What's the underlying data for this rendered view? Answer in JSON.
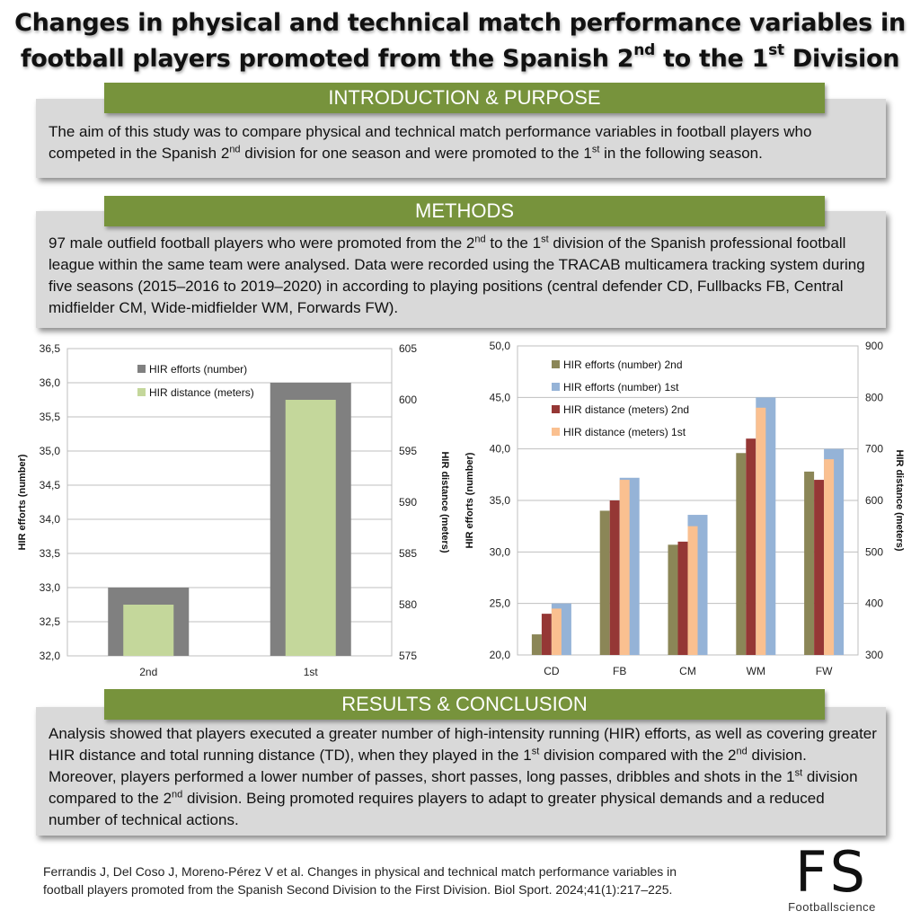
{
  "title": {
    "line1": "Changes in physical and technical match performance variables in",
    "line2_part1": "football players promoted from the Spanish 2",
    "line2_sup1": "nd",
    "line2_part2": " to the 1",
    "line2_sup2": "st",
    "line2_part3": " Division"
  },
  "intro": {
    "heading": "INTRODUCTION & PURPOSE",
    "p1": "The aim of this study was to compare physical and technical match performance variables in football players who competed in the Spanish 2",
    "sup1": "nd",
    "p2": " division for one season and were promoted to the 1",
    "sup2": "st",
    "p3": " in the following season."
  },
  "methods": {
    "heading": "METHODS",
    "p1": "97 male outfield football players who were promoted from the 2",
    "sup1": "nd",
    "p2": " to the 1",
    "sup2": "st",
    "p3": " division of the Spanish professional football league within the same team were analysed. Data were recorded using the TRACAB multicamera tracking system during five seasons (2015–2016 to 2019–2020) in according to playing positions (central defender CD, Fullbacks FB, Central midfielder CM, Wide-midfielder WM, Forwards FW)."
  },
  "results": {
    "heading": "RESULTS & CONCLUSION",
    "p1": "Analysis showed that players executed a greater number of high-intensity running (HIR) efforts, as well as covering greater HIR distance and total running distance (TD), when they played in the 1",
    "sup1": "st",
    "p2": " division compared with the 2",
    "sup2": "nd",
    "p3": " division. Moreover, players performed a lower number of passes, short passes, long passes, dribbles and shots in the 1",
    "sup3": "st",
    "p4": " division compared to the 2",
    "sup4": "nd",
    "p5": " division. Being promoted requires players to adapt to greater physical demands and a reduced number of technical actions."
  },
  "reference": {
    "line1": "Ferrandis J, Del Coso J, Moreno-Pérez V et al. Changes in physical and technical match performance variables in",
    "line2": "football players promoted from the Spanish Second Division to the First Division. Biol Sport. 2024;41(1):217–225."
  },
  "logo": {
    "mark": "FS",
    "sub": "Footballscience"
  },
  "colors": {
    "banner": "#77933c",
    "box": "#d9d9d9",
    "efforts_overall": "#808080",
    "distance_overall": "#c4d79b",
    "efforts_2nd": "#8b8657",
    "efforts_1st": "#95b3d7",
    "distance_2nd": "#953735",
    "distance_1st": "#fac090"
  },
  "chart_data": [
    {
      "type": "bar",
      "categories": [
        "2nd",
        "1st"
      ],
      "series": [
        {
          "name": "HIR efforts (number)",
          "values": [
            33.0,
            36.0
          ],
          "axis": "left"
        },
        {
          "name": "HIR distance (meters)",
          "values": [
            580,
            600
          ],
          "axis": "right"
        }
      ],
      "ylabel": "HIR efforts (number)",
      "y2label": "HIR distance (meters)",
      "ylim": [
        32.0,
        36.5
      ],
      "y2lim": [
        575,
        605
      ],
      "yticks": [
        "32,0",
        "32,5",
        "33,0",
        "33,5",
        "34,0",
        "34,5",
        "35,0",
        "35,5",
        "36,0",
        "36,5"
      ],
      "y2ticks": [
        "575",
        "580",
        "585",
        "590",
        "595",
        "600",
        "605"
      ],
      "grid": true,
      "legend": "top-left"
    },
    {
      "type": "bar",
      "categories": [
        "CD",
        "FB",
        "CM",
        "WM",
        "FW"
      ],
      "series": [
        {
          "name": "HIR efforts (number) 2nd",
          "values": [
            22.0,
            34.0,
            30.7,
            39.6,
            37.8
          ],
          "axis": "left"
        },
        {
          "name": "HIR efforts (number) 1st",
          "values": [
            25.0,
            37.2,
            33.6,
            45.0,
            40.0
          ],
          "axis": "left"
        },
        {
          "name": "HIR distance (meters) 2nd",
          "values": [
            380,
            600,
            520,
            720,
            640
          ],
          "axis": "right"
        },
        {
          "name": "HIR distance (meters) 1st",
          "values": [
            390,
            640,
            550,
            780,
            680
          ],
          "axis": "right"
        }
      ],
      "ylabel": "HIR efforts (number)",
      "y2label": "HIR distance (meters)",
      "ylim": [
        20.0,
        50.0
      ],
      "y2lim": [
        300,
        900
      ],
      "yticks": [
        "20,0",
        "25,0",
        "30,0",
        "35,0",
        "40,0",
        "45,0",
        "50,0"
      ],
      "y2ticks": [
        "300",
        "400",
        "500",
        "600",
        "700",
        "800",
        "900"
      ],
      "grid": true,
      "legend": "top-left"
    }
  ]
}
